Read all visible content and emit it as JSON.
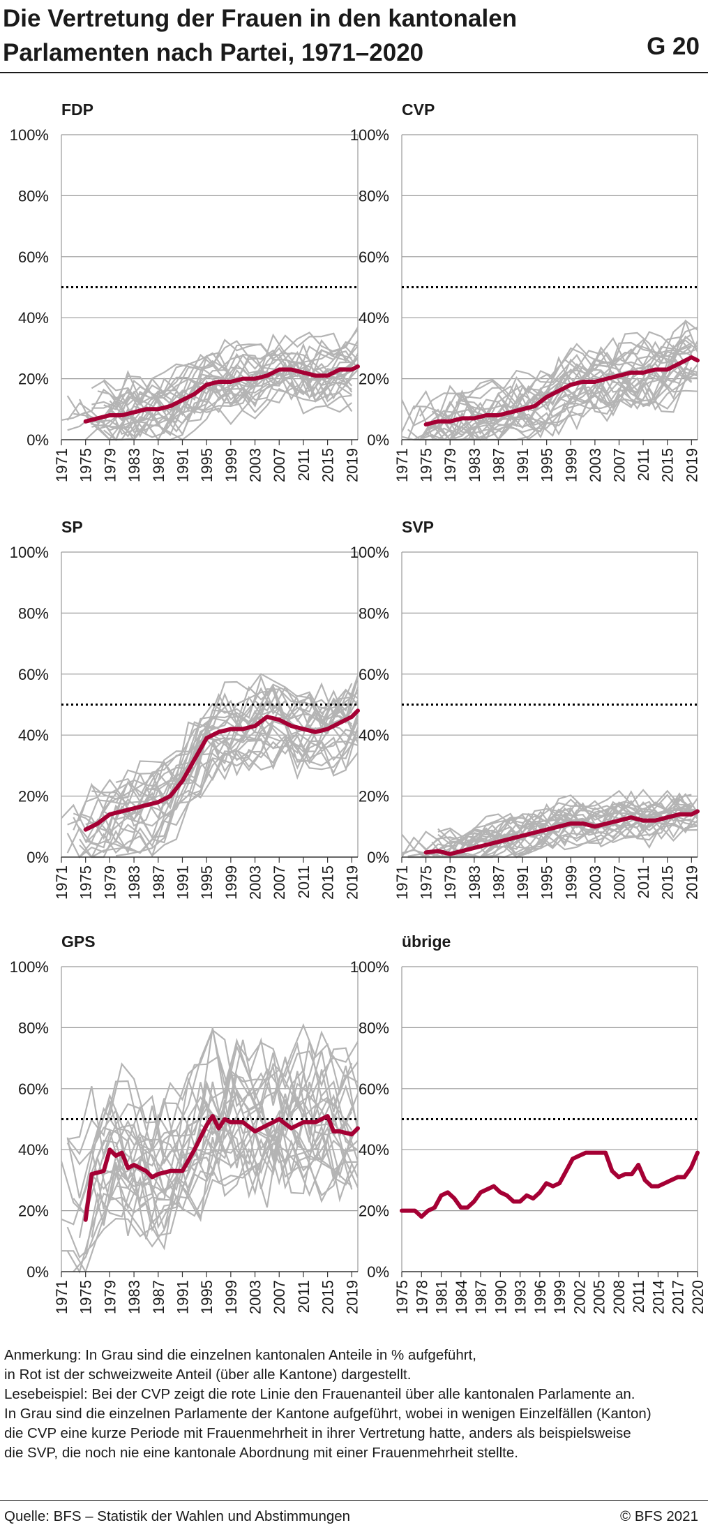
{
  "header": {
    "title": "Die Vertretung der Frauen in den kantonalen Parlamenten nach Partei, 1971–2020",
    "code": "G 20"
  },
  "colors": {
    "national": "#a50034",
    "cantons": "#b4b4b4",
    "grid": "#9a9a9a",
    "axis": "#333333"
  },
  "chart_data": [
    {
      "type": "line",
      "title": "FDP",
      "xticks": [
        "1971",
        "1975",
        "1979",
        "1983",
        "1987",
        "1991",
        "1995",
        "1999",
        "2003",
        "2007",
        "2011",
        "2015",
        "2019"
      ],
      "xlim": [
        1971,
        2020
      ],
      "ylim": [
        0,
        100
      ],
      "yticks": [
        "0%",
        "20%",
        "40%",
        "60%",
        "80%",
        "100%"
      ],
      "reference_line": 50,
      "series": [
        {
          "x": [
            1975,
            1977,
            1979,
            1981,
            1983,
            1985,
            1987,
            1989,
            1991,
            1993,
            1995,
            1997,
            1999,
            2001,
            2003,
            2005,
            2007,
            2009,
            2011,
            2013,
            2015,
            2017,
            2019,
            2020
          ],
          "values": [
            6,
            7,
            8,
            8,
            9,
            10,
            10,
            11,
            13,
            15,
            18,
            19,
            19,
            20,
            20,
            21,
            23,
            23,
            22,
            21,
            21,
            23,
            23,
            24
          ]
        }
      ]
    },
    {
      "type": "line",
      "title": "CVP",
      "xticks": [
        "1971",
        "1975",
        "1979",
        "1983",
        "1987",
        "1991",
        "1995",
        "1999",
        "2003",
        "2007",
        "2011",
        "2015",
        "2019"
      ],
      "xlim": [
        1971,
        2020
      ],
      "ylim": [
        0,
        100
      ],
      "yticks": [
        "0%",
        "20%",
        "40%",
        "60%",
        "80%",
        "100%"
      ],
      "reference_line": 50,
      "series": [
        {
          "x": [
            1975,
            1977,
            1979,
            1981,
            1983,
            1985,
            1987,
            1989,
            1991,
            1993,
            1995,
            1997,
            1999,
            2001,
            2003,
            2005,
            2007,
            2009,
            2011,
            2013,
            2015,
            2017,
            2019,
            2020
          ],
          "values": [
            5,
            6,
            6,
            7,
            7,
            8,
            8,
            9,
            10,
            11,
            14,
            16,
            18,
            19,
            19,
            20,
            21,
            22,
            22,
            23,
            23,
            25,
            27,
            26
          ]
        }
      ]
    },
    {
      "type": "line",
      "title": "SP",
      "xticks": [
        "1971",
        "1975",
        "1979",
        "1983",
        "1987",
        "1991",
        "1995",
        "1999",
        "2003",
        "2007",
        "2011",
        "2015",
        "2019"
      ],
      "xlim": [
        1971,
        2020
      ],
      "ylim": [
        0,
        100
      ],
      "yticks": [
        "0%",
        "20%",
        "40%",
        "60%",
        "80%",
        "100%"
      ],
      "reference_line": 50,
      "series": [
        {
          "x": [
            1975,
            1977,
            1979,
            1981,
            1983,
            1985,
            1987,
            1989,
            1991,
            1993,
            1995,
            1997,
            1999,
            2001,
            2003,
            2005,
            2007,
            2009,
            2011,
            2013,
            2015,
            2017,
            2019,
            2020
          ],
          "values": [
            9,
            11,
            14,
            15,
            16,
            17,
            18,
            20,
            25,
            32,
            39,
            41,
            42,
            42,
            43,
            46,
            45,
            43,
            42,
            41,
            42,
            44,
            46,
            48
          ]
        }
      ]
    },
    {
      "type": "line",
      "title": "SVP",
      "xticks": [
        "1971",
        "1975",
        "1979",
        "1983",
        "1987",
        "1991",
        "1995",
        "1999",
        "2003",
        "2007",
        "2011",
        "2015",
        "2019"
      ],
      "xlim": [
        1971,
        2020
      ],
      "ylim": [
        0,
        100
      ],
      "yticks": [
        "0%",
        "20%",
        "40%",
        "60%",
        "80%",
        "100%"
      ],
      "reference_line": 50,
      "series": [
        {
          "x": [
            1975,
            1977,
            1979,
            1981,
            1983,
            1985,
            1987,
            1989,
            1991,
            1993,
            1995,
            1997,
            1999,
            2001,
            2003,
            2005,
            2007,
            2009,
            2011,
            2013,
            2015,
            2017,
            2019,
            2020
          ],
          "values": [
            1.5,
            2,
            1,
            2,
            3,
            4,
            5,
            6,
            7,
            8,
            9,
            10,
            11,
            11,
            10,
            11,
            12,
            13,
            12,
            12,
            13,
            14,
            14,
            15
          ]
        }
      ]
    },
    {
      "type": "line",
      "title": "GPS",
      "xticks": [
        "1971",
        "1975",
        "1979",
        "1983",
        "1987",
        "1991",
        "1995",
        "1999",
        "2003",
        "2007",
        "2011",
        "2015",
        "2019"
      ],
      "xlim": [
        1971,
        2020
      ],
      "ylim": [
        0,
        100
      ],
      "yticks": [
        "0%",
        "20%",
        "40%",
        "60%",
        "80%",
        "100%"
      ],
      "reference_line": 50,
      "series": [
        {
          "x": [
            1975,
            1976,
            1978,
            1979,
            1980,
            1981,
            1982,
            1983,
            1985,
            1986,
            1987,
            1989,
            1991,
            1993,
            1994,
            1995,
            1996,
            1997,
            1998,
            1999,
            2001,
            2003,
            2005,
            2007,
            2009,
            2011,
            2013,
            2015,
            2016,
            2017,
            2019,
            2020
          ],
          "values": [
            17,
            32,
            33,
            40,
            38,
            39,
            34,
            35,
            33,
            31,
            32,
            33,
            33,
            40,
            44,
            48,
            51,
            47,
            50,
            49,
            49,
            46,
            48,
            50,
            47,
            49,
            49,
            51,
            46,
            46,
            45,
            47
          ]
        }
      ]
    },
    {
      "type": "line",
      "title": "übrige",
      "xticks": [
        "1975",
        "1978",
        "1981",
        "1984",
        "1987",
        "1990",
        "1993",
        "1996",
        "1999",
        "2002",
        "2005",
        "2008",
        "2011",
        "2014",
        "2017",
        "2020"
      ],
      "xlim": [
        1975,
        2020
      ],
      "ylim": [
        0,
        100
      ],
      "yticks": [
        "0%",
        "20%",
        "40%",
        "60%",
        "80%",
        "100%"
      ],
      "reference_line": 50,
      "series": [
        {
          "x": [
            1975,
            1976,
            1977,
            1978,
            1979,
            1980,
            1981,
            1982,
            1983,
            1984,
            1985,
            1986,
            1987,
            1988,
            1989,
            1990,
            1991,
            1992,
            1993,
            1994,
            1995,
            1996,
            1997,
            1998,
            1999,
            2000,
            2001,
            2002,
            2003,
            2004,
            2005,
            2006,
            2007,
            2008,
            2009,
            2010,
            2011,
            2012,
            2013,
            2014,
            2015,
            2016,
            2017,
            2018,
            2019,
            2020
          ],
          "values": [
            20,
            20,
            20,
            18,
            20,
            21,
            25,
            26,
            24,
            21,
            21,
            23,
            26,
            27,
            28,
            26,
            25,
            23,
            23,
            25,
            24,
            26,
            29,
            28,
            29,
            33,
            37,
            38,
            39,
            39,
            39,
            39,
            33,
            31,
            32,
            32,
            35,
            30,
            28,
            28,
            29,
            30,
            31,
            31,
            34,
            39
          ]
        }
      ]
    }
  ],
  "notes": [
    "Anmerkung: In Grau sind die einzelnen kantonalen Anteile in % aufgeführt,",
    "in Rot ist der schweizweite Anteil (über alle Kantone) dargestellt.",
    "Lesebeispiel: Bei der CVP zeigt die rote Linie den Frauenanteil über alle kantonalen Parlamente an.",
    "In Grau sind die einzelnen Parlamente der Kantone aufgeführt, wobei in wenigen Einzelfällen (Kanton)",
    "die CVP eine kurze Periode mit Frauenmehrheit in ihrer Vertretung hatte, anders als beispielsweise",
    "die SVP, die noch nie eine kantonale Abordnung mit einer Frauenmehrheit stellte."
  ],
  "footer": {
    "source": "Quelle: BFS – Statistik der Wahlen und Abstimmungen",
    "copyright": "© BFS 2021"
  }
}
